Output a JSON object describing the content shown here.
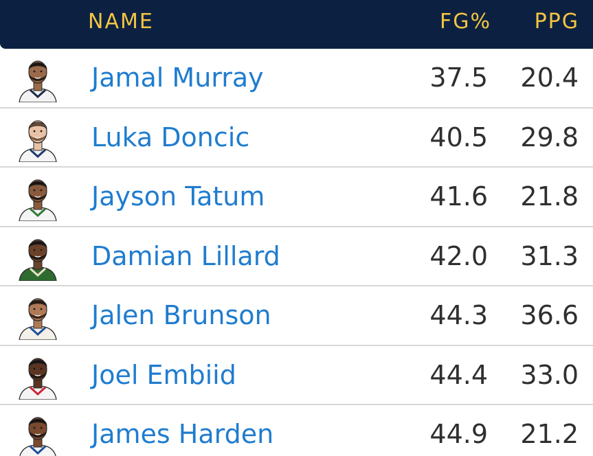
{
  "header": {
    "name": "NAME",
    "fg": "FG%",
    "ppg": "PPG"
  },
  "colors": {
    "header_bg": "#0c2142",
    "header_text": "#f5c542",
    "name_link": "#1f7ccf"
  },
  "players": [
    {
      "name": "Jamal Murray",
      "fg": "37.5",
      "ppg": "20.4",
      "skin": "#9a6a4a",
      "hair": "#1e140e",
      "jersey": "#f2f2f2",
      "trim": "#1d2a4a"
    },
    {
      "name": "Luka Doncic",
      "fg": "40.5",
      "ppg": "29.8",
      "skin": "#e8c2a6",
      "hair": "#6b4a33",
      "jersey": "#f4f4f4",
      "trim": "#1e3a6e"
    },
    {
      "name": "Jayson Tatum",
      "fg": "41.6",
      "ppg": "21.8",
      "skin": "#8a5a3c",
      "hair": "#1a1210",
      "jersey": "#f4f4f4",
      "trim": "#2f7a3a"
    },
    {
      "name": "Damian Lillard",
      "fg": "42.0",
      "ppg": "31.3",
      "skin": "#6b4128",
      "hair": "#1a1210",
      "jersey": "#2e6b2e",
      "trim": "#e9e2c8"
    },
    {
      "name": "Jalen Brunson",
      "fg": "44.3",
      "ppg": "36.6",
      "skin": "#b07a56",
      "hair": "#2a1a10",
      "jersey": "#f3efe9",
      "trim": "#1d4f9c"
    },
    {
      "name": "Joel Embiid",
      "fg": "44.4",
      "ppg": "33.0",
      "skin": "#5a3522",
      "hair": "#1a1210",
      "jersey": "#f4f4f4",
      "trim": "#d2233a"
    },
    {
      "name": "James Harden",
      "fg": "44.9",
      "ppg": "21.2",
      "skin": "#7a4a2e",
      "hair": "#1a1210",
      "jersey": "#f4f4f4",
      "trim": "#1d4f9c"
    }
  ]
}
